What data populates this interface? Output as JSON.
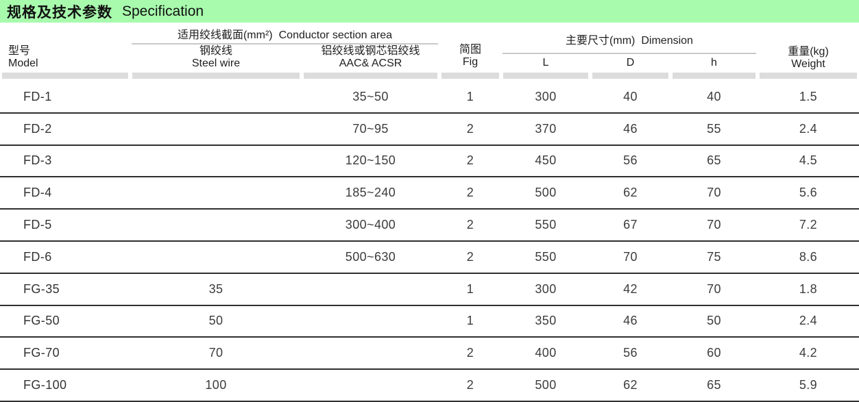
{
  "title": {
    "zh": "规格及技术参数",
    "en": "Specification"
  },
  "colors": {
    "title_bar_bg": "#a8fbad",
    "header_band": "#dcdcdc",
    "group_underline": "#c9c9c9",
    "row_divider": "#2f2f2f",
    "text": "#2f2f2f"
  },
  "table": {
    "columns": {
      "model": {
        "zh": "型号",
        "en": "Model"
      },
      "conductor_group": {
        "zh": "适用绞线截面(mm²)",
        "en": "Conductor section area"
      },
      "steel_wire": {
        "zh": "钢绞线",
        "en": "Steel wire"
      },
      "aac_acsr": {
        "zh": "铝绞线或钢芯铝绞线",
        "en": "AAC& ACSR"
      },
      "fig": {
        "zh": "简图",
        "en": "Fig"
      },
      "dimension_group": {
        "zh": "主要尺寸(mm)",
        "en": "Dimension"
      },
      "dim_l": "L",
      "dim_d": "D",
      "dim_h": "h",
      "weight": {
        "zh": "重量(kg)",
        "en": "Weight"
      }
    },
    "rows": [
      {
        "model": "FD-1",
        "steel_wire": "",
        "aac_acsr": "35~50",
        "fig": "1",
        "L": "300",
        "D": "40",
        "h": "40",
        "weight": "1.5"
      },
      {
        "model": "FD-2",
        "steel_wire": "",
        "aac_acsr": "70~95",
        "fig": "2",
        "L": "370",
        "D": "46",
        "h": "55",
        "weight": "2.4"
      },
      {
        "model": "FD-3",
        "steel_wire": "",
        "aac_acsr": "120~150",
        "fig": "2",
        "L": "450",
        "D": "56",
        "h": "65",
        "weight": "4.5"
      },
      {
        "model": "FD-4",
        "steel_wire": "",
        "aac_acsr": "185~240",
        "fig": "2",
        "L": "500",
        "D": "62",
        "h": "70",
        "weight": "5.6"
      },
      {
        "model": "FD-5",
        "steel_wire": "",
        "aac_acsr": "300~400",
        "fig": "2",
        "L": "550",
        "D": "67",
        "h": "70",
        "weight": "7.2"
      },
      {
        "model": "FD-6",
        "steel_wire": "",
        "aac_acsr": "500~630",
        "fig": "2",
        "L": "550",
        "D": "70",
        "h": "75",
        "weight": "8.6"
      },
      {
        "model": "FG-35",
        "steel_wire": "35",
        "aac_acsr": "",
        "fig": "1",
        "L": "300",
        "D": "42",
        "h": "70",
        "weight": "1.8"
      },
      {
        "model": "FG-50",
        "steel_wire": "50",
        "aac_acsr": "",
        "fig": "1",
        "L": "350",
        "D": "46",
        "h": "50",
        "weight": "2.4"
      },
      {
        "model": "FG-70",
        "steel_wire": "70",
        "aac_acsr": "",
        "fig": "2",
        "L": "400",
        "D": "56",
        "h": "60",
        "weight": "4.2"
      },
      {
        "model": "FG-100",
        "steel_wire": "100",
        "aac_acsr": "",
        "fig": "2",
        "L": "500",
        "D": "62",
        "h": "65",
        "weight": "5.9"
      }
    ]
  }
}
